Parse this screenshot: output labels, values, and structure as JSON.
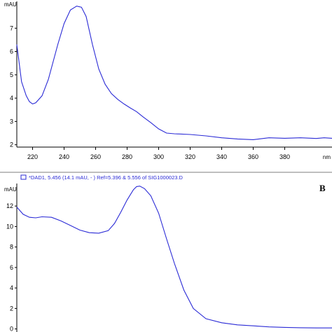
{
  "chart_data": [
    {
      "type": "line",
      "panel_letter": "",
      "ylabel": "mAU",
      "xlabel": "nm",
      "xlim": [
        210,
        410
      ],
      "ylim": [
        1.9,
        8.15
      ],
      "x_ticks": [
        220,
        240,
        260,
        280,
        300,
        320,
        340,
        360,
        380
      ],
      "y_ticks": [
        2,
        3,
        4,
        5,
        6,
        7
      ],
      "series": [
        {
          "color": "#2b2bd6",
          "x": [
            210,
            213,
            216,
            218,
            220,
            222,
            226,
            230,
            236,
            240,
            244,
            248,
            251,
            254,
            258,
            262,
            266,
            270,
            274,
            278,
            282,
            286,
            290,
            295,
            300,
            305,
            310,
            320,
            330,
            340,
            350,
            360,
            370,
            380,
            390,
            400,
            405,
            410
          ],
          "y": [
            6.3,
            4.7,
            4.1,
            3.85,
            3.75,
            3.8,
            4.1,
            4.8,
            6.3,
            7.2,
            7.78,
            7.95,
            7.9,
            7.5,
            6.3,
            5.25,
            4.6,
            4.2,
            3.95,
            3.75,
            3.58,
            3.42,
            3.2,
            2.95,
            2.68,
            2.5,
            2.47,
            2.44,
            2.38,
            2.3,
            2.25,
            2.22,
            2.3,
            2.28,
            2.3,
            2.27,
            2.3,
            2.28
          ]
        }
      ]
    },
    {
      "type": "line",
      "panel_letter": "B",
      "ylabel": "mAU",
      "xlabel": "",
      "xlim": [
        210,
        410
      ],
      "ylim": [
        -0.3,
        14.2
      ],
      "x_ticks": [],
      "y_ticks": [
        0,
        2,
        4,
        6,
        8,
        10,
        12
      ],
      "legend": "*DAD1, 5.456 (14.1 mAU, - ) Ref=5.396 & 5.556 of SIG1000023.D",
      "series": [
        {
          "color": "#2b2bd6",
          "x": [
            210,
            214,
            218,
            222,
            226,
            232,
            238,
            244,
            250,
            256,
            262,
            268,
            272,
            276,
            280,
            284,
            286,
            288,
            291,
            295,
            300,
            305,
            310,
            316,
            322,
            330,
            340,
            350,
            360,
            370,
            380,
            390,
            400,
            410
          ],
          "y": [
            11.9,
            11.2,
            10.9,
            10.85,
            10.95,
            10.9,
            10.55,
            10.1,
            9.65,
            9.4,
            9.35,
            9.6,
            10.3,
            11.4,
            12.6,
            13.6,
            13.9,
            13.95,
            13.7,
            13.0,
            11.3,
            8.8,
            6.4,
            3.8,
            2.0,
            1.0,
            0.6,
            0.4,
            0.3,
            0.2,
            0.15,
            0.12,
            0.1,
            0.1
          ]
        }
      ]
    }
  ]
}
